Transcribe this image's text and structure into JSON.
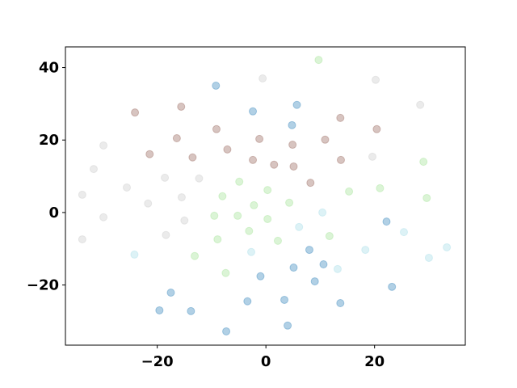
{
  "chart_data": {
    "type": "scatter",
    "title": "",
    "xlabel": "",
    "ylabel": "",
    "xlim": [
      -36.9,
      36.7
    ],
    "ylim": [
      -36.6,
      45.7
    ],
    "grid": false,
    "marker_alpha": 0.35,
    "x_ticks": [
      -20,
      0,
      20
    ],
    "y_ticks": [
      -20,
      0,
      20,
      40
    ],
    "x_tick_labels": [
      "−20",
      "0",
      "20"
    ],
    "y_tick_labels": [
      "−20",
      "0",
      "20",
      "40"
    ],
    "series": [
      {
        "color": "#1f77b4",
        "points": [
          [
            -9.2,
            35.0
          ],
          [
            -2.4,
            27.9
          ],
          [
            5.7,
            29.7
          ],
          [
            4.8,
            24.1
          ],
          [
            22.2,
            -2.5
          ],
          [
            23.2,
            -20.5
          ],
          [
            13.7,
            -25.0
          ],
          [
            9.0,
            -19.0
          ],
          [
            10.6,
            -14.3
          ],
          [
            5.1,
            -15.2
          ],
          [
            8.0,
            -10.3
          ],
          [
            -1.0,
            -17.6
          ],
          [
            -3.4,
            -24.5
          ],
          [
            3.4,
            -24.1
          ],
          [
            4.0,
            -31.2
          ],
          [
            -7.3,
            -32.8
          ],
          [
            -13.8,
            -27.2
          ],
          [
            -17.5,
            -22.1
          ],
          [
            -19.6,
            -27.0
          ]
        ]
      },
      {
        "color": "#8c564b",
        "points": [
          [
            -24.1,
            27.6
          ],
          [
            -15.6,
            29.2
          ],
          [
            -16.4,
            20.5
          ],
          [
            -9.1,
            23.0
          ],
          [
            -21.4,
            16.1
          ],
          [
            -13.5,
            15.2
          ],
          [
            -7.1,
            17.4
          ],
          [
            -2.4,
            14.5
          ],
          [
            -1.2,
            20.3
          ],
          [
            1.5,
            13.2
          ],
          [
            4.9,
            18.7
          ],
          [
            5.1,
            12.7
          ],
          [
            10.9,
            20.1
          ],
          [
            13.7,
            26.1
          ],
          [
            20.4,
            23.0
          ],
          [
            13.8,
            14.5
          ],
          [
            8.2,
            8.2
          ]
        ]
      },
      {
        "color": "#c7c7c7",
        "points": [
          [
            -0.6,
            37.0
          ],
          [
            20.2,
            36.6
          ],
          [
            28.4,
            29.7
          ],
          [
            -29.9,
            18.5
          ],
          [
            -31.7,
            12.0
          ],
          [
            -33.8,
            4.9
          ],
          [
            -25.6,
            6.9
          ],
          [
            -18.6,
            9.6
          ],
          [
            -12.3,
            9.4
          ],
          [
            -15.5,
            4.2
          ],
          [
            -21.7,
            2.5
          ],
          [
            -29.9,
            -1.3
          ],
          [
            -15.0,
            -2.2
          ],
          [
            -33.8,
            -7.4
          ],
          [
            -18.4,
            -6.2
          ],
          [
            19.6,
            15.4
          ]
        ]
      },
      {
        "color": "#98df8a",
        "points": [
          [
            9.7,
            42.1
          ],
          [
            29.0,
            14.0
          ],
          [
            21.0,
            6.7
          ],
          [
            15.3,
            5.8
          ],
          [
            29.6,
            4.0
          ],
          [
            -4.9,
            8.5
          ],
          [
            0.3,
            6.2
          ],
          [
            -8.0,
            4.5
          ],
          [
            4.3,
            2.7
          ],
          [
            -2.2,
            2.0
          ],
          [
            -9.5,
            -0.9
          ],
          [
            -5.2,
            -0.9
          ],
          [
            0.3,
            -1.8
          ],
          [
            -8.9,
            -7.4
          ],
          [
            -3.1,
            -5.1
          ],
          [
            2.2,
            -7.8
          ],
          [
            11.7,
            -6.5
          ],
          [
            -13.1,
            -12.0
          ],
          [
            -7.4,
            -16.7
          ]
        ]
      },
      {
        "color": "#9edae5",
        "points": [
          [
            10.4,
            0.0
          ],
          [
            6.1,
            -4.0
          ],
          [
            25.4,
            -5.4
          ],
          [
            18.3,
            -10.3
          ],
          [
            30.0,
            -12.5
          ],
          [
            33.3,
            -9.6
          ],
          [
            -2.7,
            -10.9
          ],
          [
            -24.2,
            -11.6
          ],
          [
            13.2,
            -15.6
          ]
        ]
      }
    ]
  }
}
